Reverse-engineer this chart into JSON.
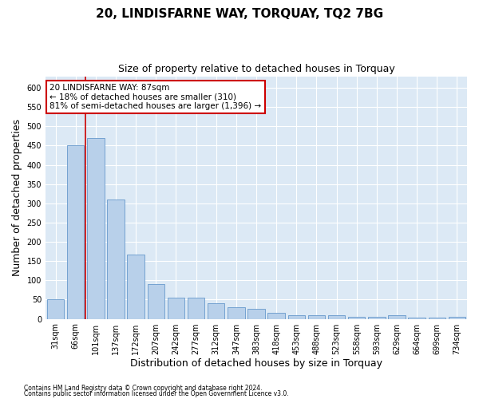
{
  "title1": "20, LINDISFARNE WAY, TORQUAY, TQ2 7BG",
  "title2": "Size of property relative to detached houses in Torquay",
  "xlabel": "Distribution of detached houses by size in Torquay",
  "ylabel": "Number of detached properties",
  "categories": [
    "31sqm",
    "66sqm",
    "101sqm",
    "137sqm",
    "172sqm",
    "207sqm",
    "242sqm",
    "277sqm",
    "312sqm",
    "347sqm",
    "383sqm",
    "418sqm",
    "453sqm",
    "488sqm",
    "523sqm",
    "558sqm",
    "593sqm",
    "629sqm",
    "664sqm",
    "699sqm",
    "734sqm"
  ],
  "values": [
    50,
    450,
    470,
    310,
    168,
    90,
    55,
    55,
    40,
    30,
    27,
    15,
    10,
    10,
    10,
    5,
    5,
    10,
    3,
    3,
    5
  ],
  "bar_color": "#b8d0ea",
  "bar_edge_color": "#6699cc",
  "red_line_x": 1.5,
  "annotation_text": "20 LINDISFARNE WAY: 87sqm\n← 18% of detached houses are smaller (310)\n81% of semi-detached houses are larger (1,396) →",
  "annotation_box_color": "#ffffff",
  "annotation_box_edge": "#cc0000",
  "ylim": [
    0,
    630
  ],
  "yticks": [
    0,
    50,
    100,
    150,
    200,
    250,
    300,
    350,
    400,
    450,
    500,
    550,
    600
  ],
  "footer1": "Contains HM Land Registry data © Crown copyright and database right 2024.",
  "footer2": "Contains public sector information licensed under the Open Government Licence v3.0.",
  "bg_color": "#dce9f5",
  "grid_color": "#ffffff",
  "title1_fontsize": 11,
  "title2_fontsize": 9,
  "tick_fontsize": 7,
  "label_fontsize": 9,
  "red_line_color": "#cc0000",
  "fig_bg_color": "#ffffff"
}
